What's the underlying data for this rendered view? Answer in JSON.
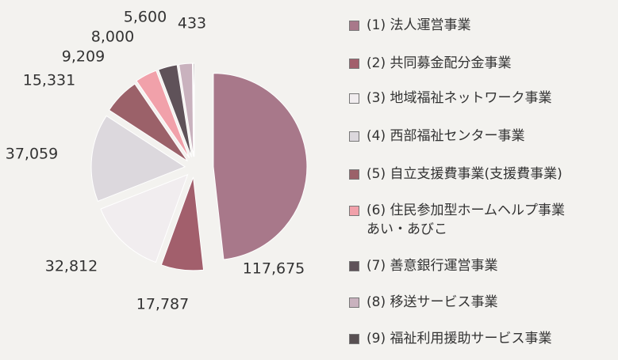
{
  "chart_data": {
    "type": "pie",
    "categories": [
      "(1) 法人運営事業",
      "(2) 共同募金配分金事業",
      "(3) 地域福祉ネットワーク事業",
      "(4) 西部福祉センター事業",
      "(5) 自立支援費事業(支援費事業)",
      "(6) 住民参加型ホームヘルプ事業\nあい・あびこ",
      "(7) 善意銀行運営事業",
      "(8) 移送サービス事業",
      "(9) 福祉利用援助サービス事業"
    ],
    "values": [
      117675,
      17787,
      32812,
      37059,
      15331,
      9209,
      8000,
      5600,
      433
    ],
    "value_labels": [
      "117,675",
      "17,787",
      "32,812",
      "37,059",
      "15,331",
      "9,209",
      "8,000",
      "5,600",
      "433"
    ],
    "colors": [
      "#a8788a",
      "#a25f6c",
      "#f1edef",
      "#dcd8dd",
      "#9b6169",
      "#f1a1aa",
      "#5f5259",
      "#c9b2be",
      "#585052"
    ]
  }
}
